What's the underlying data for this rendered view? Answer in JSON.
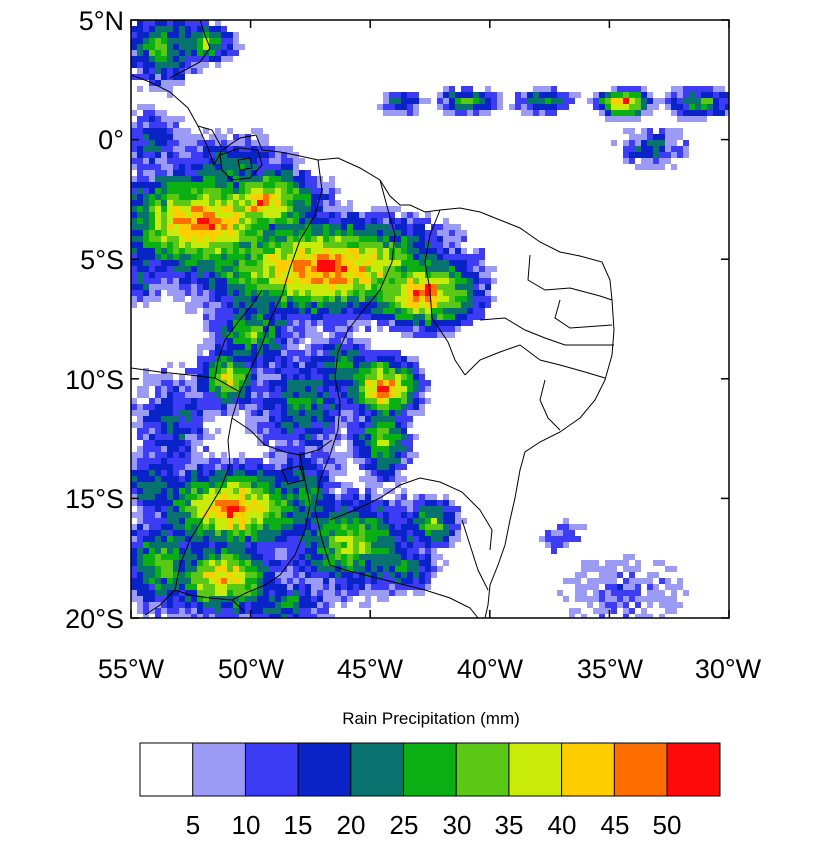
{
  "map": {
    "lat_ticks": [
      "5°N",
      "0°",
      "5°S",
      "10°S",
      "15°S",
      "20°S"
    ],
    "lon_ticks": [
      "55°W",
      "50°W",
      "45°W",
      "40°W",
      "35°W",
      "30°W"
    ],
    "extent": {
      "lon_min": -55,
      "lon_max": -30,
      "lat_min": -20,
      "lat_max": 5
    }
  },
  "legend": {
    "title": "Rain Precipitation (mm)",
    "labels": [
      "5",
      "10",
      "15",
      "20",
      "25",
      "30",
      "35",
      "40",
      "45",
      "50"
    ],
    "colors": [
      "#ffffff",
      "#9b9bf5",
      "#3c3cf5",
      "#0a23c8",
      "#08736e",
      "#0aaf14",
      "#5ac814",
      "#c8eb0a",
      "#ffcd00",
      "#ff6e00",
      "#ff0a0a"
    ]
  }
}
